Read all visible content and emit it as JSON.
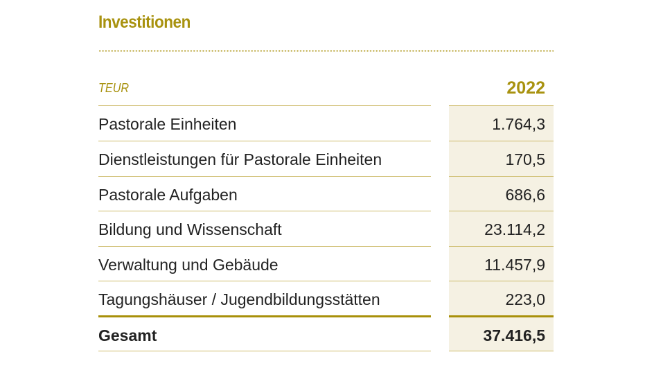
{
  "title": "Investitionen",
  "unit": "TEUR",
  "year": "2022",
  "rows": [
    {
      "label": "Pastorale Einheiten",
      "value": "1.764,3"
    },
    {
      "label": "Dienstleistungen für Pastorale Einheiten",
      "value": "170,5"
    },
    {
      "label": "Pastorale Aufgaben",
      "value": "686,6"
    },
    {
      "label": "Bildung und Wissenschaft",
      "value": "23.114,2"
    },
    {
      "label": "Verwaltung und Gebäude",
      "value": "11.457,9"
    },
    {
      "label": "Tagungshäuser / Jugendbildungsstätten",
      "value": "223,0"
    }
  ],
  "total": {
    "label": "Gesamt",
    "value": "37.416,5"
  },
  "colors": {
    "accent": "#a8920f",
    "value_bg": "#f5f1e3",
    "rule": "#cdbb6a"
  }
}
